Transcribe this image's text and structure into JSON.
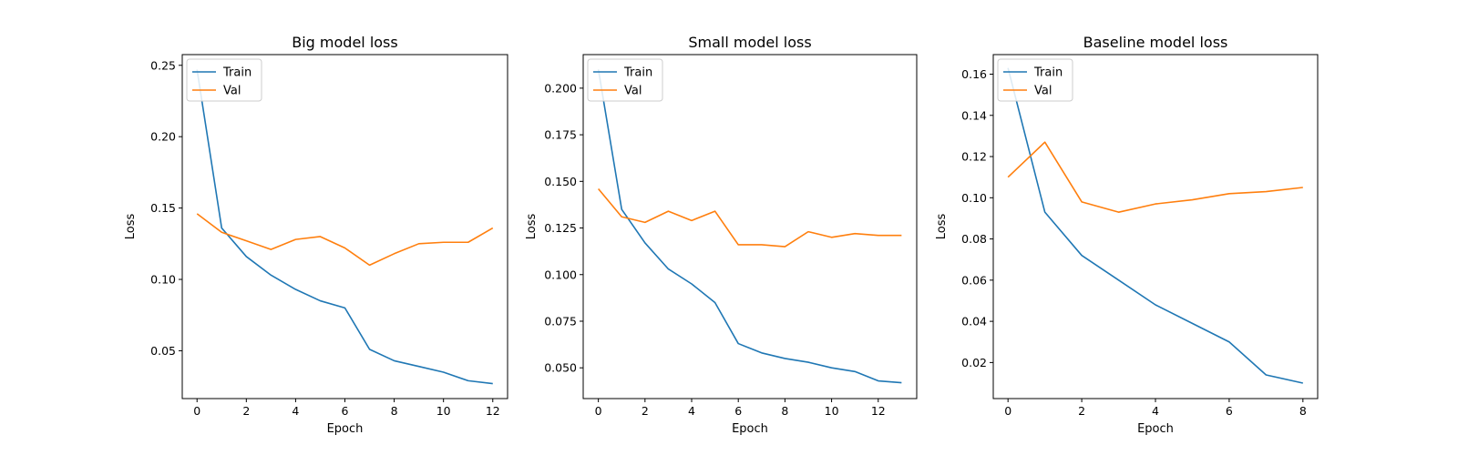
{
  "colors": {
    "train": "#1f77b4",
    "val": "#ff7f0e",
    "axes": "#000000",
    "legend_border": "#cccccc"
  },
  "chart_data": [
    {
      "type": "line",
      "title": "Big model loss",
      "xlabel": "Epoch",
      "ylabel": "Loss",
      "xlim": [
        -0.6,
        12.6
      ],
      "ylim": [
        0.0165,
        0.2575
      ],
      "xticks": [
        0,
        2,
        4,
        6,
        8,
        10,
        12
      ],
      "xtick_labels": [
        "0",
        "2",
        "4",
        "6",
        "8",
        "10",
        "12"
      ],
      "yticks": [
        0.05,
        0.1,
        0.15,
        0.2,
        0.25
      ],
      "ytick_labels": [
        "0.05",
        "0.10",
        "0.15",
        "0.20",
        "0.25"
      ],
      "grid": false,
      "legend_position": "upper left",
      "x": [
        0,
        1,
        2,
        3,
        4,
        5,
        6,
        7,
        8,
        9,
        10,
        11,
        12
      ],
      "series": [
        {
          "name": "Train",
          "values": [
            0.247,
            0.136,
            0.116,
            0.103,
            0.093,
            0.085,
            0.08,
            0.051,
            0.043,
            0.039,
            0.035,
            0.029,
            0.027
          ]
        },
        {
          "name": "Val",
          "values": [
            0.146,
            0.133,
            0.127,
            0.121,
            0.128,
            0.13,
            0.122,
            0.11,
            0.118,
            0.125,
            0.126,
            0.126,
            0.136
          ]
        }
      ]
    },
    {
      "type": "line",
      "title": "Small model loss",
      "xlabel": "Epoch",
      "ylabel": "Loss",
      "xlim": [
        -0.65,
        13.65
      ],
      "ylim": [
        0.0335,
        0.218
      ],
      "xticks": [
        0,
        2,
        4,
        6,
        8,
        10,
        12
      ],
      "xtick_labels": [
        "0",
        "2",
        "4",
        "6",
        "8",
        "10",
        "12"
      ],
      "yticks": [
        0.05,
        0.075,
        0.1,
        0.125,
        0.15,
        0.175,
        0.2
      ],
      "ytick_labels": [
        "0.050",
        "0.075",
        "0.100",
        "0.125",
        "0.150",
        "0.175",
        "0.200"
      ],
      "grid": false,
      "legend_position": "upper left",
      "x": [
        0,
        1,
        2,
        3,
        4,
        5,
        6,
        7,
        8,
        9,
        10,
        11,
        12,
        13
      ],
      "series": [
        {
          "name": "Train",
          "values": [
            0.21,
            0.135,
            0.117,
            0.103,
            0.095,
            0.085,
            0.063,
            0.058,
            0.055,
            0.053,
            0.05,
            0.048,
            0.043,
            0.042
          ]
        },
        {
          "name": "Val",
          "values": [
            0.146,
            0.131,
            0.128,
            0.134,
            0.129,
            0.134,
            0.116,
            0.116,
            0.115,
            0.123,
            0.12,
            0.122,
            0.121,
            0.121
          ]
        }
      ]
    },
    {
      "type": "line",
      "title": "Baseline model loss",
      "xlabel": "Epoch",
      "ylabel": "Loss",
      "xlim": [
        -0.4,
        8.4
      ],
      "ylim": [
        0.0025,
        0.1695
      ],
      "xticks": [
        0,
        2,
        4,
        6,
        8
      ],
      "xtick_labels": [
        "0",
        "2",
        "4",
        "6",
        "8"
      ],
      "yticks": [
        0.02,
        0.04,
        0.06,
        0.08,
        0.1,
        0.12,
        0.14,
        0.16
      ],
      "ytick_labels": [
        "0.02",
        "0.04",
        "0.06",
        "0.08",
        "0.10",
        "0.12",
        "0.14",
        "0.16"
      ],
      "grid": false,
      "legend_position": "upper left",
      "x": [
        0,
        1,
        2,
        3,
        4,
        5,
        6,
        7,
        8
      ],
      "series": [
        {
          "name": "Train",
          "values": [
            0.163,
            0.093,
            0.072,
            0.06,
            0.048,
            0.039,
            0.03,
            0.014,
            0.01
          ]
        },
        {
          "name": "Val",
          "values": [
            0.11,
            0.127,
            0.098,
            0.093,
            0.097,
            0.099,
            0.102,
            0.103,
            0.105
          ]
        }
      ]
    }
  ]
}
